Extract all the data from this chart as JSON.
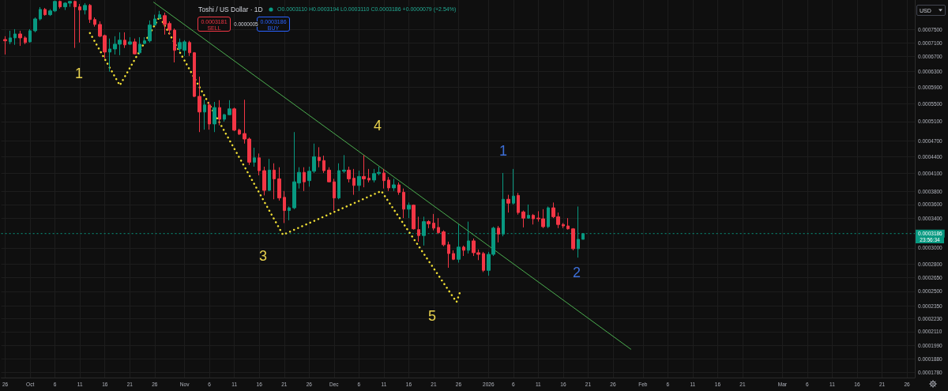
{
  "chart_data": {
    "type": "candlestick",
    "title": "Toshi / US Dollar · 1D",
    "subtitle": "O0.0003110 H0.0003194 L0.0003110 C0.0003186 +0.0000079 (+2.54%)",
    "x": [
      "2025-09-26",
      "2025-09-27",
      "2025-09-28",
      "2025-09-29",
      "2025-09-30",
      "2025-10-01",
      "2025-10-02",
      "2025-10-03",
      "2025-10-04",
      "2025-10-05",
      "2025-10-06",
      "2025-10-07",
      "2025-10-08",
      "2025-10-09",
      "2025-10-10",
      "2025-10-11",
      "2025-10-12",
      "2025-10-13",
      "2025-10-14",
      "2025-10-15",
      "2025-10-16",
      "2025-10-17",
      "2025-10-18",
      "2025-10-19",
      "2025-10-20",
      "2025-10-21",
      "2025-10-22",
      "2025-10-23",
      "2025-10-24",
      "2025-10-25",
      "2025-10-26",
      "2025-10-27",
      "2025-10-28",
      "2025-10-29",
      "2025-10-30",
      "2025-10-31",
      "2025-11-01",
      "2025-11-02",
      "2025-11-03",
      "2025-11-04",
      "2025-11-05",
      "2025-11-06",
      "2025-11-07",
      "2025-11-08",
      "2025-11-09",
      "2025-11-10",
      "2025-11-11",
      "2025-11-12",
      "2025-11-13",
      "2025-11-14",
      "2025-11-15",
      "2025-11-16",
      "2025-11-17",
      "2025-11-18",
      "2025-11-19",
      "2025-11-20",
      "2025-11-21",
      "2025-11-22",
      "2025-11-23",
      "2025-11-24",
      "2025-11-25",
      "2025-11-26",
      "2025-11-27",
      "2025-11-28",
      "2025-11-29",
      "2025-11-30",
      "2025-12-01",
      "2025-12-02",
      "2025-12-03",
      "2025-12-04",
      "2025-12-05",
      "2025-12-06",
      "2025-12-07",
      "2025-12-08",
      "2025-12-09",
      "2025-12-10",
      "2025-12-11",
      "2025-12-12",
      "2025-12-13",
      "2025-12-14",
      "2025-12-15",
      "2025-12-16",
      "2025-12-17",
      "2025-12-18",
      "2025-12-19",
      "2025-12-20",
      "2025-12-21",
      "2025-12-22",
      "2025-12-23",
      "2025-12-24",
      "2025-12-25",
      "2025-12-26",
      "2025-12-27",
      "2025-12-28",
      "2025-12-29",
      "2025-12-30",
      "2025-12-31",
      "2026-01-01",
      "2026-01-02",
      "2026-01-03",
      "2026-01-04",
      "2026-01-05",
      "2026-01-06",
      "2026-01-07",
      "2026-01-08",
      "2026-01-09",
      "2026-01-10",
      "2026-01-11",
      "2026-01-12",
      "2026-01-13",
      "2026-01-14",
      "2026-01-15",
      "2026-01-16",
      "2026-01-17",
      "2026-01-18",
      "2026-01-19",
      "2026-01-20"
    ],
    "ohlc": [
      [
        0.00072,
        0.00073,
        0.000676,
        0.000716
      ],
      [
        0.000713,
        0.000747,
        0.000706,
        0.000725
      ],
      [
        0.000725,
        0.000752,
        0.000704,
        0.000737
      ],
      [
        0.000737,
        0.000747,
        0.000701,
        0.000725
      ],
      [
        0.000725,
        0.00073,
        0.000706,
        0.000711
      ],
      [
        0.000713,
        0.000752,
        0.000711,
        0.000747
      ],
      [
        0.000747,
        0.00079,
        0.000742,
        0.000785
      ],
      [
        0.000785,
        0.000825,
        0.00078,
        0.000817
      ],
      [
        0.000817,
        0.000822,
        0.000796,
        0.000799
      ],
      [
        0.000799,
        0.000818,
        0.000795,
        0.000812
      ],
      [
        0.000812,
        0.000848,
        0.000808,
        0.000845
      ],
      [
        0.000845,
        0.000848,
        0.00082,
        0.000826
      ],
      [
        0.000826,
        0.000842,
        0.000815,
        0.000839
      ],
      [
        0.000839,
        0.000846,
        0.000826,
        0.000845
      ],
      [
        0.000845,
        0.000848,
        0.000695,
        0.000826
      ],
      [
        0.000826,
        0.000836,
        0.000711,
        0.000815
      ],
      [
        0.000815,
        0.000839,
        0.0008,
        0.000831
      ],
      [
        0.000831,
        0.000836,
        0.000772,
        0.000783
      ],
      [
        0.000783,
        0.00079,
        0.00076,
        0.000767
      ],
      [
        0.000767,
        0.000777,
        0.000727,
        0.00073
      ],
      [
        0.000732,
        0.000735,
        0.000665,
        0.000683
      ],
      [
        0.000683,
        0.000723,
        0.000629,
        0.000692
      ],
      [
        0.000692,
        0.00073,
        0.000676,
        0.000706
      ],
      [
        0.000706,
        0.000742,
        0.000674,
        0.000718
      ],
      [
        0.000718,
        0.000742,
        0.000695,
        0.000704
      ],
      [
        0.000706,
        0.000727,
        0.000704,
        0.000713
      ],
      [
        0.000713,
        0.000723,
        0.000676,
        0.000678
      ],
      [
        0.000681,
        0.000727,
        0.000676,
        0.000706
      ],
      [
        0.000708,
        0.000727,
        0.000706,
        0.000716
      ],
      [
        0.000716,
        0.00078,
        0.000711,
        0.000765
      ],
      [
        0.000765,
        0.000799,
        0.000765,
        0.000785
      ],
      [
        0.000788,
        0.000812,
        0.000785,
        0.000799
      ],
      [
        0.000796,
        0.000806,
        0.000735,
        0.000767
      ],
      [
        0.00077,
        0.000777,
        0.000735,
        0.000749
      ],
      [
        0.000749,
        0.000754,
        0.000654,
        0.000688
      ],
      [
        0.000692,
        0.000723,
        0.000683,
        0.000711
      ],
      [
        0.000688,
        0.000718,
        0.000672,
        0.000713
      ],
      [
        0.000711,
        0.000716,
        0.000672,
        0.000681
      ],
      [
        0.000681,
        0.000683,
        0.000565,
        0.000567
      ],
      [
        0.000567,
        0.000616,
        0.000488,
        0.000531
      ],
      [
        0.000531,
        0.000559,
        0.000493,
        0.000547
      ],
      [
        0.000547,
        0.000554,
        0.000493,
        0.000505
      ],
      [
        0.000505,
        0.000554,
        0.000488,
        0.000541
      ],
      [
        0.000541,
        0.000558,
        0.000502,
        0.000515
      ],
      [
        0.000515,
        0.000527,
        0.00051,
        0.000525
      ],
      [
        0.000525,
        0.000558,
        0.000524,
        0.000538
      ],
      [
        0.000538,
        0.000541,
        0.00049,
        0.000492
      ],
      [
        0.000492,
        0.000495,
        0.000482,
        0.000484
      ],
      [
        0.000485,
        0.000559,
        0.000465,
        0.000474
      ],
      [
        0.000474,
        0.000477,
        0.000425,
        0.00043
      ],
      [
        0.00043,
        0.000457,
        0.000422,
        0.000438
      ],
      [
        0.000438,
        0.000446,
        0.000407,
        0.000415
      ],
      [
        0.000415,
        0.000422,
        0.000374,
        0.000382
      ],
      [
        0.000382,
        0.000436,
        0.000381,
        0.000416
      ],
      [
        0.000416,
        0.000428,
        0.000368,
        0.000401
      ],
      [
        0.000401,
        0.000421,
        0.000366,
        0.00037
      ],
      [
        0.000371,
        0.000381,
        0.000333,
        0.000351
      ],
      [
        0.000351,
        0.000357,
        0.000337,
        0.000355
      ],
      [
        0.000355,
        0.000488,
        0.000353,
        0.000396
      ],
      [
        0.000394,
        0.000421,
        0.000385,
        0.000412
      ],
      [
        0.000412,
        0.000421,
        0.000381,
        0.000396
      ],
      [
        0.000398,
        0.000422,
        0.000388,
        0.000414
      ],
      [
        0.000414,
        0.000465,
        0.000411,
        0.00044
      ],
      [
        0.000439,
        0.000458,
        0.000421,
        0.000433
      ],
      [
        0.000433,
        0.000442,
        0.000411,
        0.000415
      ],
      [
        0.000416,
        0.000421,
        0.000395,
        0.000396
      ],
      [
        0.000396,
        0.000401,
        0.000351,
        0.00037
      ],
      [
        0.00037,
        0.000428,
        0.000368,
        0.000415
      ],
      [
        0.000414,
        0.000443,
        0.000411,
        0.000416
      ],
      [
        0.000416,
        0.000422,
        0.000395,
        0.000401
      ],
      [
        0.000402,
        0.000418,
        0.000375,
        0.00039
      ],
      [
        0.00039,
        0.000415,
        0.000381,
        0.000405
      ],
      [
        0.000405,
        0.000443,
        0.000387,
        0.000401
      ],
      [
        0.000402,
        0.000418,
        0.000395,
        0.000399
      ],
      [
        0.000399,
        0.000418,
        0.000395,
        0.00041
      ],
      [
        0.00041,
        0.000422,
        0.000407,
        0.000412
      ],
      [
        0.000411,
        0.000418,
        0.000385,
        0.000398
      ],
      [
        0.000399,
        0.000404,
        0.000381,
        0.000386
      ],
      [
        0.000386,
        0.000401,
        0.000381,
        0.000391
      ],
      [
        0.000391,
        0.000395,
        0.000375,
        0.000379
      ],
      [
        0.000379,
        0.000385,
        0.00034,
        0.000353
      ],
      [
        0.000353,
        0.000363,
        0.00034,
        0.000359
      ],
      [
        0.000359,
        0.00036,
        0.000324,
        0.000325
      ],
      [
        0.000324,
        0.000342,
        0.000308,
        0.000316
      ],
      [
        0.000316,
        0.000342,
        0.000303,
        0.000335
      ],
      [
        0.000335,
        0.000337,
        0.000326,
        0.000332
      ],
      [
        0.000333,
        0.000346,
        0.000323,
        0.000326
      ],
      [
        0.000327,
        0.00034,
        0.000318,
        0.00032
      ],
      [
        0.000321,
        0.000323,
        0.000302,
        0.000304
      ],
      [
        0.000304,
        0.000308,
        0.000276,
        0.000293
      ],
      [
        0.000293,
        0.000297,
        0.000285,
        0.000286
      ],
      [
        0.000286,
        0.000331,
        0.000282,
        0.000301
      ],
      [
        0.000301,
        0.000303,
        0.00029,
        0.000297
      ],
      [
        0.000297,
        0.000335,
        0.000293,
        0.000309
      ],
      [
        0.000309,
        0.000312,
        0.00029,
        0.000294
      ],
      [
        0.000294,
        0.000298,
        0.000285,
        0.000292
      ],
      [
        0.000293,
        0.000295,
        0.000271,
        0.000273
      ],
      [
        0.000273,
        0.000295,
        0.000267,
        0.000292
      ],
      [
        0.000292,
        0.000328,
        0.00029,
        0.000326
      ],
      [
        0.000326,
        0.000329,
        0.000307,
        0.000318
      ],
      [
        0.000318,
        0.000411,
        0.000315,
        0.000368
      ],
      [
        0.000368,
        0.000375,
        0.000348,
        0.000362
      ],
      [
        0.000362,
        0.000418,
        0.00036,
        0.000373
      ],
      [
        0.000374,
        0.000378,
        0.000345,
        0.000348
      ],
      [
        0.000349,
        0.000351,
        0.000327,
        0.00034
      ],
      [
        0.00034,
        0.00036,
        0.000339,
        0.000344
      ],
      [
        0.000344,
        0.000346,
        0.000331,
        0.000339
      ],
      [
        0.00034,
        0.00035,
        0.000335,
        0.000339
      ],
      [
        0.000339,
        0.000353,
        0.000326,
        0.000328
      ],
      [
        0.000328,
        0.000357,
        0.000326,
        0.000355
      ],
      [
        0.000355,
        0.000363,
        0.00034,
        0.000342
      ],
      [
        0.000342,
        0.000348,
        0.000326,
        0.000331
      ],
      [
        0.000331,
        0.000333,
        0.000326,
        0.000329
      ],
      [
        0.000329,
        0.00034,
        0.000324,
        0.000325
      ],
      [
        0.000325,
        0.000326,
        0.000297,
        0.000299
      ],
      [
        0.000299,
        0.000357,
        0.000288,
        0.000311
      ],
      [
        0.000311,
        0.0003194,
        0.000311,
        0.0003186
      ]
    ],
    "colors": [
      "#f23645",
      "#089981",
      "#089981",
      "#f23645",
      "#f23645",
      "#089981",
      "#089981",
      "#089981",
      "#f23645",
      "#089981",
      "#089981",
      "#f23645",
      "#089981",
      "#089981",
      "#f23645",
      "#f23645",
      "#089981",
      "#f23645",
      "#f23645",
      "#f23645",
      "#f23645",
      "#089981",
      "#089981",
      "#089981",
      "#f23645",
      "#089981",
      "#f23645",
      "#089981",
      "#089981",
      "#089981",
      "#089981",
      "#089981",
      "#f23645",
      "#f23645",
      "#f23645",
      "#089981",
      "#089981",
      "#f23645",
      "#f23645",
      "#f23645",
      "#089981",
      "#f23645",
      "#089981",
      "#f23645",
      "#089981",
      "#089981",
      "#f23645",
      "#f23645",
      "#f23645",
      "#f23645",
      "#089981",
      "#f23645",
      "#f23645",
      "#089981",
      "#f23645",
      "#f23645",
      "#f23645",
      "#089981",
      "#089981",
      "#089981",
      "#f23645",
      "#089981",
      "#089981",
      "#f23645",
      "#f23645",
      "#f23645",
      "#f23645",
      "#089981",
      "#089981",
      "#f23645",
      "#f23645",
      "#089981",
      "#f23645",
      "#f23645",
      "#089981",
      "#089981",
      "#f23645",
      "#f23645",
      "#089981",
      "#f23645",
      "#f23645",
      "#089981",
      "#f23645",
      "#f23645",
      "#089981",
      "#f23645",
      "#f23645",
      "#f23645",
      "#f23645",
      "#f23645",
      "#f23645",
      "#089981",
      "#f23645",
      "#089981",
      "#f23645",
      "#f23645",
      "#f23645",
      "#089981",
      "#089981",
      "#f23645",
      "#089981",
      "#f23645",
      "#089981",
      "#f23645",
      "#f23645",
      "#089981",
      "#f23645",
      "#f23645",
      "#f23645",
      "#089981",
      "#f23645",
      "#f23645",
      "#f23645",
      "#f23645",
      "#f23645",
      "#089981",
      "#089981"
    ],
    "series": [
      {
        "type": "line",
        "color": "#4caf50",
        "line_style": "solid",
        "x": [
          "2025-10-25T19:00",
          "2026-01-29T14:00"
        ],
        "values": [
          0.000842,
          0.000196
        ]
      },
      {
        "type": "line",
        "color": "#f2e035",
        "line_style": "dotted",
        "x": [
          "2025-10-13",
          "2025-10-19",
          "2025-10-27",
          "2025-11-20T18:00",
          "2025-12-10T12:00",
          "2025-12-25T14:00",
          "2025-12-26T05:00"
        ],
        "values": [
          0.00074,
          0.000594,
          0.000793,
          0.000317,
          0.000381,
          0.000239,
          0.000248
        ]
      }
    ],
    "annotations": [
      "0.0003181",
      "SELL",
      "0.0000005",
      "0.0003186",
      "BUY",
      "USD",
      "23:56:34",
      "1",
      "3",
      "4",
      "5",
      "1",
      "2"
    ],
    "ref_lines": [
      {
        "axis": "y",
        "value": 0.0003186,
        "label": "0.0003186",
        "color": "#089981",
        "line_style": "dotted"
      }
    ],
    "xlim": [
      "2025-09-25T05:00",
      "2026-03-27T14:00"
    ],
    "xticks": [
      {
        "value": "2025-09-26",
        "label": "26"
      },
      {
        "value": "2025-10-01",
        "label": "Oct"
      },
      {
        "value": "2025-10-06",
        "label": "6"
      },
      {
        "value": "2025-10-11",
        "label": "11"
      },
      {
        "value": "2025-10-16",
        "label": "16"
      },
      {
        "value": "2025-10-21",
        "label": "21"
      },
      {
        "value": "2025-10-26",
        "label": "26"
      },
      {
        "value": "2025-11-01",
        "label": "Nov"
      },
      {
        "value": "2025-11-06",
        "label": "6"
      },
      {
        "value": "2025-11-11",
        "label": "11"
      },
      {
        "value": "2025-11-16",
        "label": "16"
      },
      {
        "value": "2025-11-21",
        "label": "21"
      },
      {
        "value": "2025-11-26",
        "label": "26"
      },
      {
        "value": "2025-12-01",
        "label": "Dec"
      },
      {
        "value": "2025-12-06",
        "label": "6"
      },
      {
        "value": "2025-12-11",
        "label": "11"
      },
      {
        "value": "2025-12-16",
        "label": "16"
      },
      {
        "value": "2025-12-21",
        "label": "21"
      },
      {
        "value": "2025-12-26",
        "label": "26"
      },
      {
        "value": "2026-01-01",
        "label": "2026"
      },
      {
        "value": "2026-01-06",
        "label": "6"
      },
      {
        "value": "2026-01-11",
        "label": "11"
      },
      {
        "value": "2026-01-16",
        "label": "16"
      },
      {
        "value": "2026-01-21",
        "label": "21"
      },
      {
        "value": "2026-01-26",
        "label": "26"
      },
      {
        "value": "2026-02-01",
        "label": "Feb"
      },
      {
        "value": "2026-02-06",
        "label": "6"
      },
      {
        "value": "2026-02-11",
        "label": "11"
      },
      {
        "value": "2026-02-16",
        "label": "16"
      },
      {
        "value": "2026-02-21",
        "label": "21"
      },
      {
        "value": "2026-03-01",
        "label": "Mar"
      },
      {
        "value": "2026-03-06",
        "label": "6"
      },
      {
        "value": "2026-03-11",
        "label": "11"
      },
      {
        "value": "2026-03-16",
        "label": "16"
      },
      {
        "value": "2026-03-21",
        "label": "21"
      },
      {
        "value": "2026-03-26",
        "label": "26"
      }
    ],
    "ylim": [
      0.000174,
      0.00085
    ],
    "yticks": [
      {
        "value": 0.00075,
        "label": "0.0007500"
      },
      {
        "value": 0.00071,
        "label": "0.0007100"
      },
      {
        "value": 0.00067,
        "label": "0.0006700"
      },
      {
        "value": 0.00063,
        "label": "0.0006300"
      },
      {
        "value": 0.00059,
        "label": "0.0005900"
      },
      {
        "value": 0.00055,
        "label": "0.0005500"
      },
      {
        "value": 0.00051,
        "label": "0.0005100"
      },
      {
        "value": 0.00047,
        "label": "0.0004700"
      },
      {
        "value": 0.00044,
        "label": "0.0004400"
      },
      {
        "value": 0.00041,
        "label": "0.0004100"
      },
      {
        "value": 0.00038,
        "label": "0.0003800"
      },
      {
        "value": 0.00036,
        "label": "0.0003600"
      },
      {
        "value": 0.00034,
        "label": "0.0003400"
      },
      {
        "value": 0.0003,
        "label": "0.0003000"
      },
      {
        "value": 0.00028,
        "label": "0.0002800"
      },
      {
        "value": 0.000265,
        "label": "0.0002650"
      },
      {
        "value": 0.00025,
        "label": "0.0002500"
      },
      {
        "value": 0.000235,
        "label": "0.0002350"
      },
      {
        "value": 0.000223,
        "label": "0.0002230"
      },
      {
        "value": 0.000211,
        "label": "0.0002110"
      },
      {
        "value": 0.000199,
        "label": "0.0001990"
      },
      {
        "value": 0.000188,
        "label": "0.0001880"
      },
      {
        "value": 0.000178,
        "label": "0.0001780"
      }
    ],
    "log": "y",
    "grid": true,
    "marker": "none"
  }
}
